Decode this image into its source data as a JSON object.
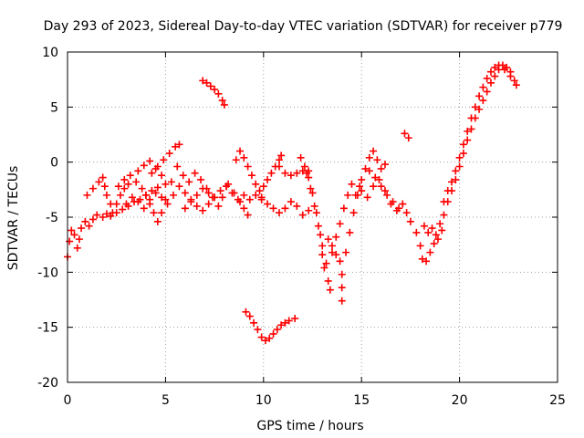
{
  "chart_data": {
    "type": "scatter",
    "title": "Day 293 of 2023, Sidereal Day-to-day VTEC variation (SDTVAR) for receiver p779",
    "xlabel": "GPS time / hours",
    "ylabel": "SDTVAR / TECUs",
    "xlim": [
      0,
      25
    ],
    "ylim": [
      -20,
      10
    ],
    "xticks": [
      0,
      5,
      10,
      15,
      20,
      25
    ],
    "yticks": [
      -20,
      -15,
      -10,
      -5,
      0,
      5,
      10
    ],
    "grid": true,
    "marker": "+",
    "color": "#ff0000",
    "series": [
      {
        "values": [
          {
            "x": 0.0,
            "y": -8.6
          },
          {
            "x": 0.1,
            "y": -7.2
          },
          {
            "x": 0.2,
            "y": -6.2
          },
          {
            "x": 0.35,
            "y": -6.6
          },
          {
            "x": 0.5,
            "y": -7.8
          },
          {
            "x": 0.6,
            "y": -7.0
          },
          {
            "x": 0.7,
            "y": -6.0
          },
          {
            "x": 0.9,
            "y": -5.4
          },
          {
            "x": 1.1,
            "y": -5.8
          },
          {
            "x": 1.3,
            "y": -5.2
          },
          {
            "x": 1.5,
            "y": -4.8
          },
          {
            "x": 1.8,
            "y": -5.0
          },
          {
            "x": 2.0,
            "y": -4.7
          },
          {
            "x": 2.2,
            "y": -4.9
          },
          {
            "x": 2.5,
            "y": -4.6
          },
          {
            "x": 2.8,
            "y": -4.3
          },
          {
            "x": 3.1,
            "y": -4.0
          },
          {
            "x": 3.4,
            "y": -3.6
          },
          {
            "x": 3.7,
            "y": -3.4
          },
          {
            "x": 4.0,
            "y": -3.0
          },
          {
            "x": 4.3,
            "y": -2.6
          },
          {
            "x": 4.6,
            "y": -2.3
          },
          {
            "x": 5.0,
            "y": -2.0
          },
          {
            "x": 5.3,
            "y": -1.8
          },
          {
            "x": 1.0,
            "y": -3.0
          },
          {
            "x": 1.3,
            "y": -2.4
          },
          {
            "x": 1.6,
            "y": -1.8
          },
          {
            "x": 1.8,
            "y": -1.4
          },
          {
            "x": 1.9,
            "y": -2.2
          },
          {
            "x": 2.0,
            "y": -3.0
          },
          {
            "x": 2.2,
            "y": -3.8
          },
          {
            "x": 2.3,
            "y": -4.6
          },
          {
            "x": 2.5,
            "y": -3.8
          },
          {
            "x": 2.7,
            "y": -3.0
          },
          {
            "x": 2.9,
            "y": -2.4
          },
          {
            "x": 3.1,
            "y": -2.0
          },
          {
            "x": 2.6,
            "y": -2.2
          },
          {
            "x": 2.9,
            "y": -1.6
          },
          {
            "x": 3.2,
            "y": -1.2
          },
          {
            "x": 3.6,
            "y": -0.8
          },
          {
            "x": 3.9,
            "y": -0.3
          },
          {
            "x": 4.2,
            "y": 0.1
          },
          {
            "x": 4.5,
            "y": -0.6
          },
          {
            "x": 4.8,
            "y": -1.2
          },
          {
            "x": 3.5,
            "y": -1.8
          },
          {
            "x": 3.8,
            "y": -2.4
          },
          {
            "x": 4.0,
            "y": -3.0
          },
          {
            "x": 4.2,
            "y": -3.8
          },
          {
            "x": 4.4,
            "y": -4.6
          },
          {
            "x": 4.6,
            "y": -5.4
          },
          {
            "x": 4.8,
            "y": -4.6
          },
          {
            "x": 5.0,
            "y": -3.4
          },
          {
            "x": 4.3,
            "y": -1.0
          },
          {
            "x": 4.6,
            "y": -0.4
          },
          {
            "x": 4.9,
            "y": 0.2
          },
          {
            "x": 5.2,
            "y": 0.8
          },
          {
            "x": 5.5,
            "y": 1.4
          },
          {
            "x": 5.7,
            "y": 1.6
          },
          {
            "x": 3.0,
            "y": -3.8
          },
          {
            "x": 3.3,
            "y": -3.2
          },
          {
            "x": 3.6,
            "y": -3.6
          },
          {
            "x": 3.9,
            "y": -4.2
          },
          {
            "x": 4.2,
            "y": -3.4
          },
          {
            "x": 4.5,
            "y": -2.8
          },
          {
            "x": 4.8,
            "y": -3.2
          },
          {
            "x": 5.1,
            "y": -3.8
          },
          {
            "x": 5.4,
            "y": -3.0
          },
          {
            "x": 5.7,
            "y": -2.2
          },
          {
            "x": 6.0,
            "y": -2.8
          },
          {
            "x": 6.3,
            "y": -3.4
          },
          {
            "x": 6.6,
            "y": -3.0
          },
          {
            "x": 6.9,
            "y": -2.4
          },
          {
            "x": 7.2,
            "y": -2.8
          },
          {
            "x": 7.5,
            "y": -3.2
          },
          {
            "x": 5.6,
            "y": -0.4
          },
          {
            "x": 5.9,
            "y": -1.2
          },
          {
            "x": 6.2,
            "y": -1.8
          },
          {
            "x": 6.5,
            "y": -1.0
          },
          {
            "x": 6.8,
            "y": -1.6
          },
          {
            "x": 7.1,
            "y": -2.4
          },
          {
            "x": 7.4,
            "y": -3.2
          },
          {
            "x": 7.7,
            "y": -4.0
          },
          {
            "x": 7.9,
            "y": -3.2
          },
          {
            "x": 8.1,
            "y": -2.2
          },
          {
            "x": 6.0,
            "y": -4.2
          },
          {
            "x": 6.3,
            "y": -3.6
          },
          {
            "x": 6.6,
            "y": -4.0
          },
          {
            "x": 6.9,
            "y": -4.4
          },
          {
            "x": 7.2,
            "y": -3.8
          },
          {
            "x": 7.5,
            "y": -3.2
          },
          {
            "x": 6.9,
            "y": 7.4
          },
          {
            "x": 7.1,
            "y": 7.2
          },
          {
            "x": 7.3,
            "y": 6.9
          },
          {
            "x": 7.5,
            "y": 6.6
          },
          {
            "x": 7.7,
            "y": 6.2
          },
          {
            "x": 7.9,
            "y": 5.6
          },
          {
            "x": 8.0,
            "y": 5.2
          },
          {
            "x": 7.8,
            "y": -2.6
          },
          {
            "x": 8.1,
            "y": -2.2
          },
          {
            "x": 8.4,
            "y": -2.8
          },
          {
            "x": 8.7,
            "y": -3.4
          },
          {
            "x": 9.0,
            "y": -3.0
          },
          {
            "x": 9.3,
            "y": -3.4
          },
          {
            "x": 9.6,
            "y": -3.0
          },
          {
            "x": 9.9,
            "y": -3.2
          },
          {
            "x": 8.2,
            "y": -2.0
          },
          {
            "x": 8.5,
            "y": -2.8
          },
          {
            "x": 8.8,
            "y": -3.6
          },
          {
            "x": 9.0,
            "y": -4.2
          },
          {
            "x": 9.2,
            "y": -4.8
          },
          {
            "x": 8.6,
            "y": 0.2
          },
          {
            "x": 8.8,
            "y": 1.0
          },
          {
            "x": 9.0,
            "y": 0.4
          },
          {
            "x": 9.2,
            "y": -0.4
          },
          {
            "x": 9.4,
            "y": -1.2
          },
          {
            "x": 9.6,
            "y": -2.0
          },
          {
            "x": 9.8,
            "y": -2.6
          },
          {
            "x": 10.0,
            "y": -2.2
          },
          {
            "x": 10.2,
            "y": -1.6
          },
          {
            "x": 10.4,
            "y": -1.0
          },
          {
            "x": 10.6,
            "y": -0.4
          },
          {
            "x": 10.8,
            "y": 0.2
          },
          {
            "x": 10.9,
            "y": 0.6
          },
          {
            "x": 9.9,
            "y": -3.4
          },
          {
            "x": 10.2,
            "y": -3.8
          },
          {
            "x": 10.5,
            "y": -4.2
          },
          {
            "x": 10.8,
            "y": -4.6
          },
          {
            "x": 11.1,
            "y": -4.2
          },
          {
            "x": 11.4,
            "y": -3.6
          },
          {
            "x": 11.7,
            "y": -4.0
          },
          {
            "x": 12.0,
            "y": -4.8
          },
          {
            "x": 12.3,
            "y": -4.4
          },
          {
            "x": 10.8,
            "y": -0.4
          },
          {
            "x": 11.1,
            "y": -1.0
          },
          {
            "x": 11.4,
            "y": -1.2
          },
          {
            "x": 11.7,
            "y": -1.0
          },
          {
            "x": 12.0,
            "y": -0.8
          },
          {
            "x": 12.3,
            "y": -0.8
          },
          {
            "x": 9.1,
            "y": -13.6
          },
          {
            "x": 9.3,
            "y": -14.0
          },
          {
            "x": 9.5,
            "y": -14.6
          },
          {
            "x": 9.7,
            "y": -15.2
          },
          {
            "x": 9.9,
            "y": -15.9
          },
          {
            "x": 10.1,
            "y": -16.2
          },
          {
            "x": 10.3,
            "y": -16.0
          },
          {
            "x": 10.5,
            "y": -15.6
          },
          {
            "x": 10.7,
            "y": -15.2
          },
          {
            "x": 10.9,
            "y": -14.8
          },
          {
            "x": 11.1,
            "y": -14.6
          },
          {
            "x": 11.3,
            "y": -14.4
          },
          {
            "x": 11.6,
            "y": -14.2
          },
          {
            "x": 11.9,
            "y": 0.4
          },
          {
            "x": 12.1,
            "y": -0.4
          },
          {
            "x": 12.3,
            "y": -1.4
          },
          {
            "x": 12.5,
            "y": -2.8
          },
          {
            "x": 12.7,
            "y": -4.6
          },
          {
            "x": 12.9,
            "y": -6.6
          },
          {
            "x": 13.0,
            "y": -8.4
          },
          {
            "x": 13.1,
            "y": -9.6
          },
          {
            "x": 12.2,
            "y": -1.0
          },
          {
            "x": 12.4,
            "y": -2.4
          },
          {
            "x": 12.6,
            "y": -4.0
          },
          {
            "x": 12.8,
            "y": -5.8
          },
          {
            "x": 13.0,
            "y": -7.6
          },
          {
            "x": 13.2,
            "y": -9.2
          },
          {
            "x": 13.3,
            "y": -10.8
          },
          {
            "x": 13.4,
            "y": -11.6
          },
          {
            "x": 13.5,
            "y": -8.2
          },
          {
            "x": 13.7,
            "y": -6.8
          },
          {
            "x": 13.9,
            "y": -5.6
          },
          {
            "x": 14.1,
            "y": -4.2
          },
          {
            "x": 14.3,
            "y": -3.0
          },
          {
            "x": 14.5,
            "y": -2.0
          },
          {
            "x": 14.7,
            "y": -3.0
          },
          {
            "x": 14.9,
            "y": -2.2
          },
          {
            "x": 13.3,
            "y": -7.0
          },
          {
            "x": 13.5,
            "y": -7.6
          },
          {
            "x": 13.7,
            "y": -8.4
          },
          {
            "x": 13.9,
            "y": -9.0
          },
          {
            "x": 14.0,
            "y": -10.2
          },
          {
            "x": 14.0,
            "y": -11.4
          },
          {
            "x": 14.0,
            "y": -12.6
          },
          {
            "x": 14.2,
            "y": -8.2
          },
          {
            "x": 14.4,
            "y": -6.4
          },
          {
            "x": 14.6,
            "y": -4.6
          },
          {
            "x": 14.8,
            "y": -3.0
          },
          {
            "x": 15.0,
            "y": -1.6
          },
          {
            "x": 15.2,
            "y": -0.6
          },
          {
            "x": 15.4,
            "y": 0.4
          },
          {
            "x": 15.6,
            "y": 1.0
          },
          {
            "x": 15.8,
            "y": 0.2
          },
          {
            "x": 16.0,
            "y": -0.6
          },
          {
            "x": 16.2,
            "y": -0.2
          },
          {
            "x": 15.0,
            "y": -2.6
          },
          {
            "x": 15.3,
            "y": -3.2
          },
          {
            "x": 15.6,
            "y": -2.2
          },
          {
            "x": 15.9,
            "y": -1.6
          },
          {
            "x": 16.2,
            "y": -2.6
          },
          {
            "x": 16.5,
            "y": -3.8
          },
          {
            "x": 16.8,
            "y": -4.4
          },
          {
            "x": 17.1,
            "y": -3.8
          },
          {
            "x": 17.3,
            "y": -4.6
          },
          {
            "x": 17.5,
            "y": -5.4
          },
          {
            "x": 15.4,
            "y": -0.8
          },
          {
            "x": 15.7,
            "y": -1.4
          },
          {
            "x": 16.0,
            "y": -2.2
          },
          {
            "x": 16.3,
            "y": -3.0
          },
          {
            "x": 16.6,
            "y": -3.6
          },
          {
            "x": 16.9,
            "y": -4.2
          },
          {
            "x": 17.2,
            "y": 2.6
          },
          {
            "x": 17.4,
            "y": 2.2
          },
          {
            "x": 17.8,
            "y": -6.4
          },
          {
            "x": 18.0,
            "y": -7.6
          },
          {
            "x": 18.1,
            "y": -8.8
          },
          {
            "x": 18.3,
            "y": -9.0
          },
          {
            "x": 18.5,
            "y": -8.2
          },
          {
            "x": 18.7,
            "y": -7.4
          },
          {
            "x": 18.9,
            "y": -7.0
          },
          {
            "x": 19.1,
            "y": -6.2
          },
          {
            "x": 18.2,
            "y": -5.8
          },
          {
            "x": 18.4,
            "y": -6.4
          },
          {
            "x": 18.6,
            "y": -6.0
          },
          {
            "x": 18.8,
            "y": -6.6
          },
          {
            "x": 19.0,
            "y": -5.6
          },
          {
            "x": 19.2,
            "y": -4.8
          },
          {
            "x": 19.4,
            "y": -3.6
          },
          {
            "x": 19.6,
            "y": -2.6
          },
          {
            "x": 19.8,
            "y": -1.6
          },
          {
            "x": 20.0,
            "y": -0.4
          },
          {
            "x": 20.2,
            "y": 0.8
          },
          {
            "x": 20.4,
            "y": 2.0
          },
          {
            "x": 20.6,
            "y": 3.0
          },
          {
            "x": 20.8,
            "y": 4.0
          },
          {
            "x": 21.0,
            "y": 4.8
          },
          {
            "x": 21.2,
            "y": 5.6
          },
          {
            "x": 21.4,
            "y": 6.4
          },
          {
            "x": 21.6,
            "y": 7.2
          },
          {
            "x": 21.8,
            "y": 7.8
          },
          {
            "x": 22.0,
            "y": 8.4
          },
          {
            "x": 22.2,
            "y": 8.8
          },
          {
            "x": 22.4,
            "y": 8.6
          },
          {
            "x": 22.6,
            "y": 8.2
          },
          {
            "x": 22.8,
            "y": 7.4
          },
          {
            "x": 19.2,
            "y": -3.6
          },
          {
            "x": 19.4,
            "y": -2.6
          },
          {
            "x": 19.6,
            "y": -1.8
          },
          {
            "x": 19.8,
            "y": -0.8
          },
          {
            "x": 20.0,
            "y": 0.4
          },
          {
            "x": 20.2,
            "y": 1.6
          },
          {
            "x": 20.4,
            "y": 2.8
          },
          {
            "x": 20.6,
            "y": 4.0
          },
          {
            "x": 20.8,
            "y": 5.0
          },
          {
            "x": 21.0,
            "y": 6.0
          },
          {
            "x": 21.2,
            "y": 6.8
          },
          {
            "x": 21.4,
            "y": 7.6
          },
          {
            "x": 21.6,
            "y": 8.2
          },
          {
            "x": 21.8,
            "y": 8.6
          },
          {
            "x": 22.0,
            "y": 8.8
          },
          {
            "x": 22.3,
            "y": 8.4
          },
          {
            "x": 22.6,
            "y": 7.8
          },
          {
            "x": 22.9,
            "y": 7.0
          }
        ]
      }
    ]
  }
}
